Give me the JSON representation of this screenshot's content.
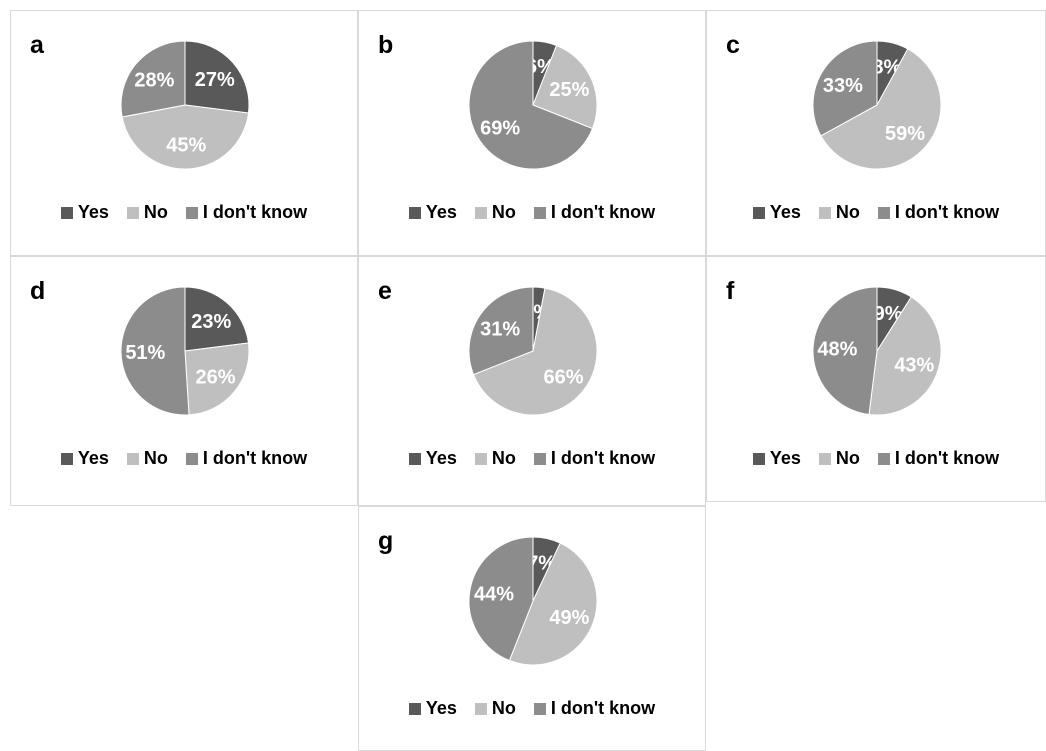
{
  "legend": [
    "Yes",
    "No",
    "I don't know"
  ],
  "colors": {
    "yes": "#595959",
    "no": "#bfbfbf",
    "unknown": "#8c8c8c"
  },
  "chart_data": [
    {
      "type": "pie",
      "label": "a",
      "categories": [
        "Yes",
        "No",
        "I don't know"
      ],
      "values": [
        27,
        45,
        28
      ],
      "value_labels": [
        "27%",
        "45%",
        "28%"
      ]
    },
    {
      "type": "pie",
      "label": "b",
      "categories": [
        "Yes",
        "No",
        "I don't know"
      ],
      "values": [
        6,
        25,
        69
      ],
      "value_labels": [
        "6%",
        "25%",
        "69%"
      ]
    },
    {
      "type": "pie",
      "label": "c",
      "categories": [
        "Yes",
        "No",
        "I don't know"
      ],
      "values": [
        8,
        59,
        33
      ],
      "value_labels": [
        "8%",
        "59%",
        "33%"
      ]
    },
    {
      "type": "pie",
      "label": "d",
      "categories": [
        "Yes",
        "No",
        "I don't know"
      ],
      "values": [
        23,
        26,
        51
      ],
      "value_labels": [
        "23%",
        "26%",
        "51%"
      ]
    },
    {
      "type": "pie",
      "label": "e",
      "categories": [
        "Yes",
        "No",
        "I don't know"
      ],
      "values": [
        3,
        66,
        31
      ],
      "value_labels": [
        "3%",
        "66%",
        "31%"
      ]
    },
    {
      "type": "pie",
      "label": "f",
      "categories": [
        "Yes",
        "No",
        "I don't know"
      ],
      "values": [
        9,
        43,
        48
      ],
      "value_labels": [
        "9%",
        "43%",
        "48%"
      ]
    },
    {
      "type": "pie",
      "label": "g",
      "categories": [
        "Yes",
        "No",
        "I don't know"
      ],
      "values": [
        7,
        49,
        44
      ],
      "value_labels": [
        "7%",
        "49%",
        "44%"
      ]
    }
  ]
}
